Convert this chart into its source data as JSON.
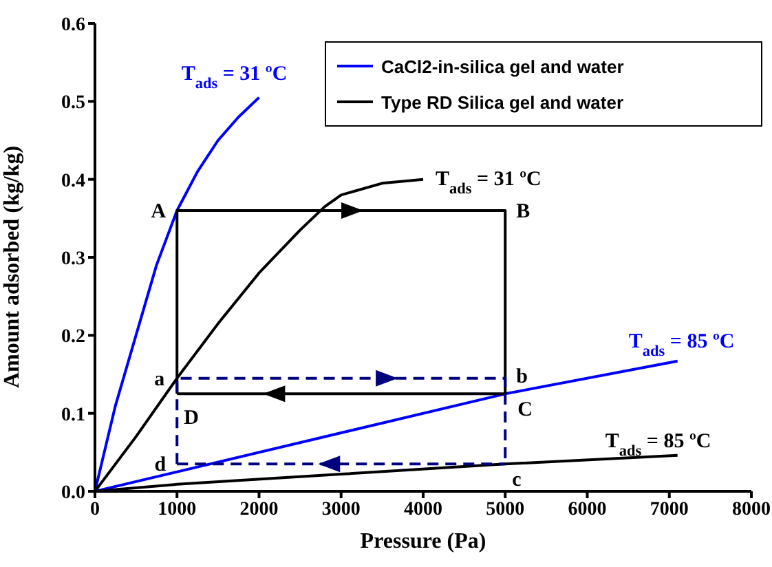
{
  "chart_data": {
    "type": "line",
    "xlabel": "Pressure (Pa)",
    "ylabel": "Amount adsorbed (kg/kg)",
    "xlim": [
      0,
      8000
    ],
    "ylim": [
      0,
      0.6
    ],
    "xticks": [
      0,
      1000,
      2000,
      3000,
      4000,
      5000,
      6000,
      7000,
      8000
    ],
    "yticks": [
      {
        "value": 0,
        "label": "0.0"
      },
      0.1,
      0.2,
      0.3,
      0.4,
      0.5,
      0.6
    ],
    "grid": false,
    "legend": "top right",
    "marker": "none",
    "line_style": "solid",
    "series": [
      {
        "name": "CaCl2-in-silica gel and water",
        "color": "#0000ff",
        "x": [
          0,
          250,
          500,
          750,
          1000,
          1250,
          1500,
          1750,
          2000
        ],
        "values": [
          0,
          0.11,
          0.2,
          0.29,
          0.36,
          0.41,
          0.45,
          0.48,
          0.505
        ]
      },
      {
        "name": "Type RD Silica gel and water",
        "color": "#000000",
        "x": [
          0,
          500,
          1000,
          1500,
          2000,
          2500,
          2800,
          3000,
          3500,
          4000
        ],
        "values": [
          0,
          0.07,
          0.145,
          0.215,
          0.28,
          0.335,
          0.365,
          0.38,
          0.395,
          0.4
        ]
      },
      {
        "color": "#0000ff",
        "x": [
          0,
          5000,
          7100
        ],
        "values": [
          0,
          0.125,
          0.167
        ]
      },
      {
        "color": "#000000",
        "x": [
          0,
          1000,
          3000,
          5000,
          7100
        ],
        "values": [
          0,
          0.009,
          0.022,
          0.035,
          0.046
        ]
      },
      {
        "color": "#000000",
        "x": [
          1000,
          1000,
          5000,
          5000
        ],
        "values": [
          0.125,
          0.36,
          0.36,
          0.125
        ]
      },
      {
        "color": "#000000",
        "x": [
          1000,
          5000
        ],
        "values": [
          0.125,
          0.125
        ]
      },
      {
        "color": "#00007f",
        "line_style": "dashed",
        "x": [
          1000,
          1000,
          5000,
          5000
        ],
        "values": [
          0.035,
          0.145,
          0.145,
          0.035
        ]
      },
      {
        "color": "#00007f",
        "line_style": "dashed",
        "x": [
          1000,
          5000
        ],
        "values": [
          0.035,
          0.035
        ]
      }
    ],
    "annotations": [
      {
        "text": "T$_{ads}$ = 31 ºC",
        "x": 2000,
        "y": 0.505
      },
      {
        "text": "T$_{ads}$ = 31 ºC",
        "x": 4000,
        "y": 0.4
      },
      {
        "text": "T$_{ads}$ = 85 ºC",
        "x": 7100,
        "y": 0.167
      },
      {
        "text": "T$_{ads}$ = 85 ºC",
        "x": 7100,
        "y": 0.046
      },
      {
        "text": "A",
        "x": 1000,
        "y": 0.36
      },
      {
        "text": "B",
        "x": 5000,
        "y": 0.36
      },
      {
        "text": "C",
        "x": 5000,
        "y": 0.125
      },
      {
        "text": "D",
        "x": 1000,
        "y": 0.125
      },
      {
        "text": "a",
        "x": 1000,
        "y": 0.145
      },
      {
        "text": "b",
        "x": 5000,
        "y": 0.145
      },
      {
        "text": "c",
        "x": 5000,
        "y": 0.035
      },
      {
        "text": "d",
        "x": 1000,
        "y": 0.035
      }
    ]
  }
}
